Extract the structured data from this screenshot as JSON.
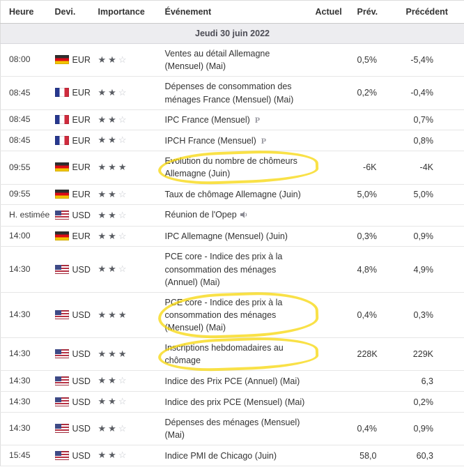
{
  "icons": {
    "star_filled": "★",
    "star_empty": "☆",
    "preliminary_glyph": "P"
  },
  "colors": {
    "highlight": "#f7d500",
    "star_filled": "#5a5d63",
    "star_empty": "#c2c5cb",
    "date_band_bg": "#ededf0"
  },
  "calendar": {
    "columns": {
      "time": "Heure",
      "currency": "Devi.",
      "importance": "Importance",
      "event": "Événement",
      "actual": "Actuel",
      "forecast": "Prév.",
      "previous": "Précédent"
    },
    "date_header": "Jeudi 30 juin 2022",
    "rows": [
      {
        "time": "08:00",
        "flag": "de",
        "currency": "EUR",
        "stars": 2,
        "event": "Ventes au détail Allemagne (Mensuel) (Mai)",
        "icon": null,
        "actual": "",
        "forecast": "0,5%",
        "previous": "-5,4%",
        "highlighted": false
      },
      {
        "time": "08:45",
        "flag": "fr",
        "currency": "EUR",
        "stars": 2,
        "event": "Dépenses de consommation des ménages France (Mensuel) (Mai)",
        "icon": null,
        "actual": "",
        "forecast": "0,2%",
        "previous": "-0,4%",
        "highlighted": false
      },
      {
        "time": "08:45",
        "flag": "fr",
        "currency": "EUR",
        "stars": 2,
        "event": "IPC France (Mensuel)",
        "icon": "preliminary",
        "actual": "",
        "forecast": "",
        "previous": "0,7%",
        "highlighted": false
      },
      {
        "time": "08:45",
        "flag": "fr",
        "currency": "EUR",
        "stars": 2,
        "event": "IPCH France (Mensuel)",
        "icon": "preliminary",
        "actual": "",
        "forecast": "",
        "previous": "0,8%",
        "highlighted": false
      },
      {
        "time": "09:55",
        "flag": "de",
        "currency": "EUR",
        "stars": 3,
        "event": "Evolution du nombre de chômeurs Allemagne (Juin)",
        "icon": null,
        "actual": "",
        "forecast": "-6K",
        "previous": "-4K",
        "highlighted": true
      },
      {
        "time": "09:55",
        "flag": "de",
        "currency": "EUR",
        "stars": 2,
        "event": "Taux de chômage Allemagne (Juin)",
        "icon": null,
        "actual": "",
        "forecast": "5,0%",
        "previous": "5,0%",
        "highlighted": false
      },
      {
        "time": "H. estimée",
        "flag": "us",
        "currency": "USD",
        "stars": 2,
        "event": "Réunion de l'Opep",
        "icon": "speaker",
        "actual": "",
        "forecast": "",
        "previous": "",
        "highlighted": false
      },
      {
        "time": "14:00",
        "flag": "de",
        "currency": "EUR",
        "stars": 2,
        "event": "IPC Allemagne (Mensuel) (Juin)",
        "icon": null,
        "actual": "",
        "forecast": "0,3%",
        "previous": "0,9%",
        "highlighted": false
      },
      {
        "time": "14:30",
        "flag": "us",
        "currency": "USD",
        "stars": 2,
        "event": "PCE core - Indice des prix à la consommation des ménages (Annuel) (Mai)",
        "icon": null,
        "actual": "",
        "forecast": "4,8%",
        "previous": "4,9%",
        "highlighted": false
      },
      {
        "time": "14:30",
        "flag": "us",
        "currency": "USD",
        "stars": 3,
        "event": "PCE core - Indice des prix à la consommation des ménages (Mensuel) (Mai)",
        "icon": null,
        "actual": "",
        "forecast": "0,4%",
        "previous": "0,3%",
        "highlighted": true
      },
      {
        "time": "14:30",
        "flag": "us",
        "currency": "USD",
        "stars": 3,
        "event": "Inscriptions hebdomadaires au chômage",
        "icon": null,
        "actual": "",
        "forecast": "228K",
        "previous": "229K",
        "highlighted": true
      },
      {
        "time": "14:30",
        "flag": "us",
        "currency": "USD",
        "stars": 2,
        "event": "Indice des Prix PCE (Annuel) (Mai)",
        "icon": null,
        "actual": "",
        "forecast": "",
        "previous": "6,3",
        "highlighted": false
      },
      {
        "time": "14:30",
        "flag": "us",
        "currency": "USD",
        "stars": 2,
        "event": "Indice des prix PCE (Mensuel) (Mai)",
        "icon": null,
        "actual": "",
        "forecast": "",
        "previous": "0,2%",
        "highlighted": false
      },
      {
        "time": "14:30",
        "flag": "us",
        "currency": "USD",
        "stars": 2,
        "event": "Dépenses des ménages (Mensuel) (Mai)",
        "icon": null,
        "actual": "",
        "forecast": "0,4%",
        "previous": "0,9%",
        "highlighted": false
      },
      {
        "time": "15:45",
        "flag": "us",
        "currency": "USD",
        "stars": 2,
        "event": "Indice PMI de Chicago (Juin)",
        "icon": null,
        "actual": "",
        "forecast": "58,0",
        "previous": "60,3",
        "highlighted": false
      }
    ]
  }
}
